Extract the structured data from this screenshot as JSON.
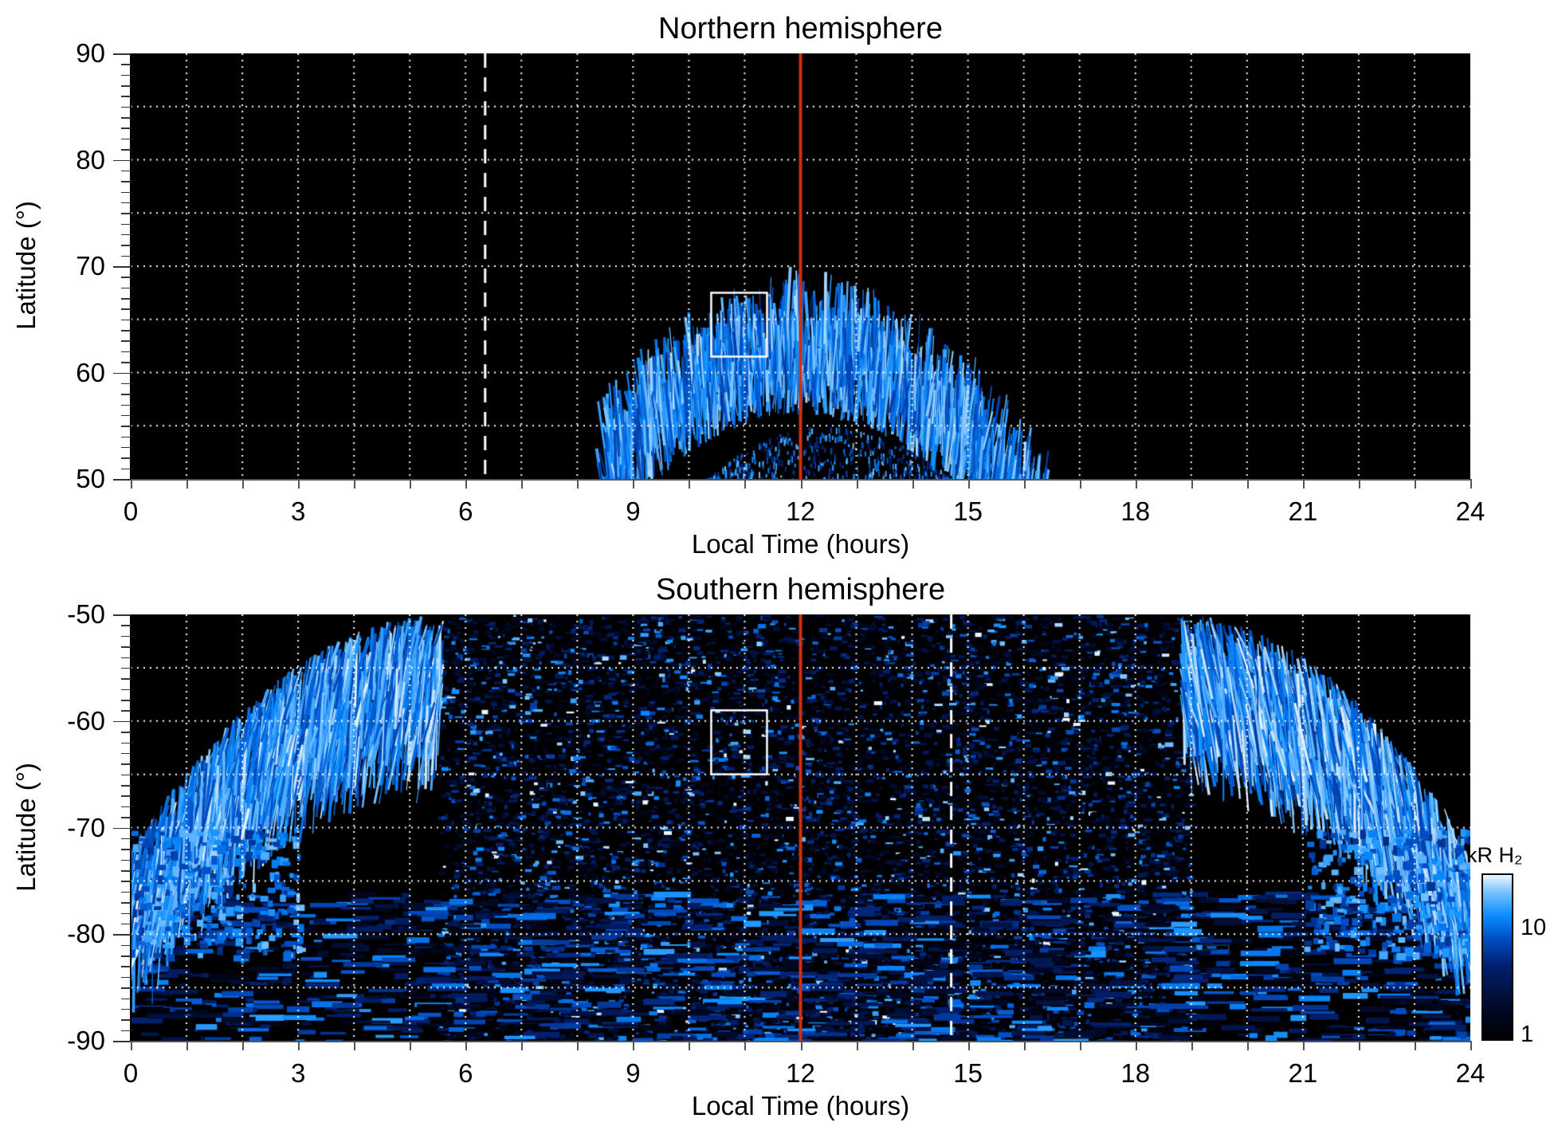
{
  "chart_data": [
    {
      "type": "heatmap",
      "title": "Northern hemisphere",
      "xlabel": "Local Time (hours)",
      "ylabel": "Latitude (°)",
      "xlim": [
        0,
        24
      ],
      "ylim": [
        50,
        90
      ],
      "xticks": [
        "0",
        "3",
        "6",
        "9",
        "12",
        "15",
        "18",
        "21",
        "24"
      ],
      "yticks": [
        "50",
        "60",
        "70",
        "80",
        "90"
      ],
      "grid": true,
      "grid_x_step": 1,
      "grid_y_step": 5,
      "annotations": {
        "red_line_lt": 12,
        "dashed_line_lt": 6.35,
        "box": {
          "lt": [
            10.4,
            11.4
          ],
          "lat": [
            61.5,
            67.5
          ]
        }
      },
      "aurora": {
        "oval_peak_lat_noon": 64,
        "oval_lt_range": [
          8.5,
          16.3
        ],
        "inner_ring_lat_noon": 55
      }
    },
    {
      "type": "heatmap",
      "title": "Southern hemisphere",
      "xlabel": "Local Time (hours)",
      "ylabel": "Latitude (°)",
      "xlim": [
        0,
        24
      ],
      "ylim": [
        -90,
        -50
      ],
      "xticks": [
        "0",
        "3",
        "6",
        "9",
        "12",
        "15",
        "18",
        "21",
        "24"
      ],
      "yticks": [
        "-90",
        "-80",
        "-70",
        "-60",
        "-50"
      ],
      "grid": true,
      "grid_x_step": 1,
      "grid_y_step": 5,
      "annotations": {
        "red_line_lt": 12,
        "dashed_line_lt": 14.7,
        "box": {
          "lt": [
            10.4,
            11.4
          ],
          "lat": [
            -65,
            -59
          ]
        }
      },
      "colorbar": {
        "label": "kR H₂",
        "scale": "log",
        "range": [
          1,
          30
        ],
        "ticks": [
          "1",
          "10"
        ]
      }
    }
  ],
  "colors": {
    "red_line": "#d03010",
    "aurora_blue": "#0a8cff"
  }
}
